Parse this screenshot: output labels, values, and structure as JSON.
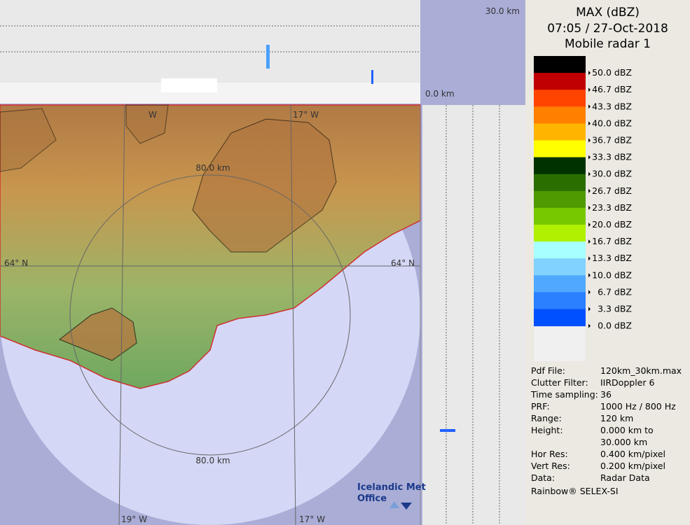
{
  "header": {
    "title": "MAX (dBZ)",
    "datetime": "07:05 / 27-Oct-2018",
    "radar": "Mobile radar 1"
  },
  "scale": {
    "levels": [
      {
        "label": "50.0 dBZ",
        "color": "#000000"
      },
      {
        "label": "46.7 dBZ",
        "color": "#c00000"
      },
      {
        "label": "43.3 dBZ",
        "color": "#ff4400"
      },
      {
        "label": "40.0 dBZ",
        "color": "#ff8000"
      },
      {
        "label": "36.7 dBZ",
        "color": "#ffb400"
      },
      {
        "label": "33.3 dBZ",
        "color": "#ffff00"
      },
      {
        "label": "30.0 dBZ",
        "color": "#003200"
      },
      {
        "label": "26.7 dBZ",
        "color": "#2a6e00"
      },
      {
        "label": "23.3 dBZ",
        "color": "#4e9a00"
      },
      {
        "label": "20.0 dBZ",
        "color": "#78c800"
      },
      {
        "label": "16.7 dBZ",
        "color": "#b0f000"
      },
      {
        "label": "13.3 dBZ",
        "color": "#a8ffff"
      },
      {
        "label": "10.0 dBZ",
        "color": "#82d2ff"
      },
      {
        "label": "6.7 dBZ",
        "color": "#50a8ff"
      },
      {
        "label": "3.3 dBZ",
        "color": "#2a80ff"
      },
      {
        "label": "0.0 dBZ",
        "color": "#0050ff"
      }
    ]
  },
  "info": {
    "rows": [
      [
        "Pdf File:",
        "120km_30km.max"
      ],
      [
        "Clutter Filter:",
        "IIRDoppler 6"
      ],
      [
        "Time sampling:",
        "36"
      ],
      [
        "PRF:",
        "1000 Hz / 800 Hz"
      ],
      [
        "Range:",
        "120 km"
      ],
      [
        "Height:",
        "0.000 km to",
        "30.000 km"
      ],
      [
        "Hor Res:",
        "0.400 km/pixel"
      ],
      [
        "Vert Res:",
        "0.200 km/pixel"
      ],
      [
        "Data:",
        "Radar Data"
      ],
      [
        "Rainbow® SELEX-SI"
      ]
    ]
  },
  "map": {
    "top_height": "30.0 km",
    "zero_height": "0.0 km",
    "ring_top": "80.0 km",
    "ring_bottom": "80.0 km",
    "lat_left": "64° N",
    "lat_right": "64° N",
    "lon_top": "17° W",
    "lon_top_left": "W",
    "lon_bottom_left": "19° W",
    "lon_bottom_right": "17° W",
    "logo_1": "Icelandic Met",
    "logo_2": "Office"
  }
}
